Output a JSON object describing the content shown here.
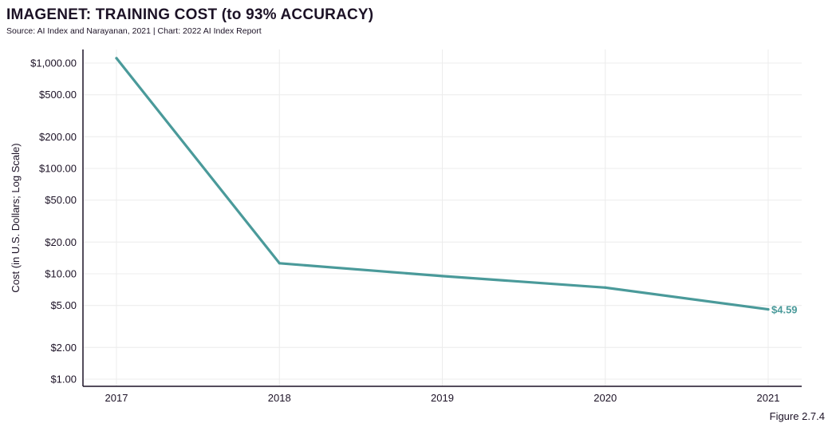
{
  "chart_data": {
    "type": "line",
    "title": "IMAGENET: TRAINING COST (to 93% ACCURACY)",
    "subtitle": "Source: AI Index and Narayanan, 2021 | Chart: 2022 AI Index Report",
    "xlabel": "",
    "ylabel": "Cost (in U.S. Dollars; Log Scale)",
    "yscale": "log",
    "ylim": [
      1,
      1000
    ],
    "x": [
      2017,
      2018,
      2019,
      2020,
      2021
    ],
    "x_tick_labels": [
      "2017",
      "2018",
      "2019",
      "2020",
      "2021"
    ],
    "y_ticks": [
      1,
      2,
      5,
      10,
      20,
      50,
      100,
      200,
      500,
      1000
    ],
    "y_tick_labels": [
      "$1.00",
      "$2.00",
      "$5.00",
      "$10.00",
      "$20.00",
      "$50.00",
      "$100.00",
      "$200.00",
      "$500.00",
      "$1,000.00"
    ],
    "series": [
      {
        "values": [
          1112.0,
          12.6,
          9.5,
          7.4,
          4.59
        ],
        "color": "#4a9a9a"
      }
    ],
    "annotations": [
      {
        "series": 0,
        "index": 4,
        "text": "$4.59"
      }
    ],
    "grid": true,
    "legend": "none"
  },
  "footer": "Figure 2.7.4"
}
